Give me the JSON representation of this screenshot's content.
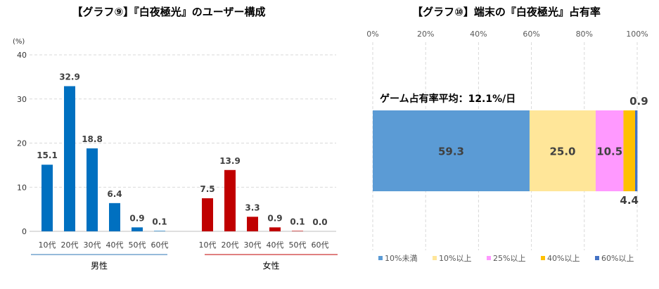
{
  "chart_data": [
    {
      "type": "bar",
      "title": "【グラフ⑨】『白夜極光』のユーザー構成",
      "unit_label": "(%)",
      "ylim": [
        0,
        40
      ],
      "yticks": [
        "0",
        "10",
        "20",
        "30",
        "40"
      ],
      "grid": true,
      "groups": [
        {
          "name": "男性",
          "color": "#0070c0",
          "categories": [
            "10代",
            "20代",
            "30代",
            "40代",
            "50代",
            "60代"
          ],
          "values": [
            15.1,
            32.9,
            18.8,
            6.4,
            0.9,
            0.1
          ],
          "labels": [
            "15.1",
            "32.9",
            "18.8",
            "6.4",
            "0.9",
            "0.1"
          ]
        },
        {
          "name": "女性",
          "color": "#c00000",
          "categories": [
            "10代",
            "20代",
            "30代",
            "40代",
            "50代",
            "60代"
          ],
          "values": [
            7.5,
            13.9,
            3.3,
            0.9,
            0.1,
            0.0
          ],
          "labels": [
            "7.5",
            "13.9",
            "3.3",
            "0.9",
            "0.1",
            "0.0"
          ]
        }
      ]
    },
    {
      "type": "stacked-bar-horizontal",
      "title": "【グラフ⑩】端末の『白夜極光』占有率",
      "xticks": [
        "0%",
        "20%",
        "40%",
        "60%",
        "80%",
        "100%"
      ],
      "xlim": [
        0,
        100
      ],
      "annotation": "ゲーム占有率平均：12.1%/日",
      "series": [
        {
          "name": "10%未満",
          "value": 59.3,
          "label": "59.3",
          "color": "#5b9bd5"
        },
        {
          "name": "10%以上",
          "value": 25.0,
          "label": "25.0",
          "color": "#ffe699"
        },
        {
          "name": "25%以上",
          "value": 10.5,
          "label": "10.5",
          "color": "#ff99ff"
        },
        {
          "name": "40%以上",
          "value": 4.4,
          "label": "4.4",
          "color": "#ffc000"
        },
        {
          "name": "60%以上",
          "value": 0.9,
          "label": "0.9",
          "color": "#4472c4"
        }
      ],
      "legend_position": "bottom"
    }
  ]
}
